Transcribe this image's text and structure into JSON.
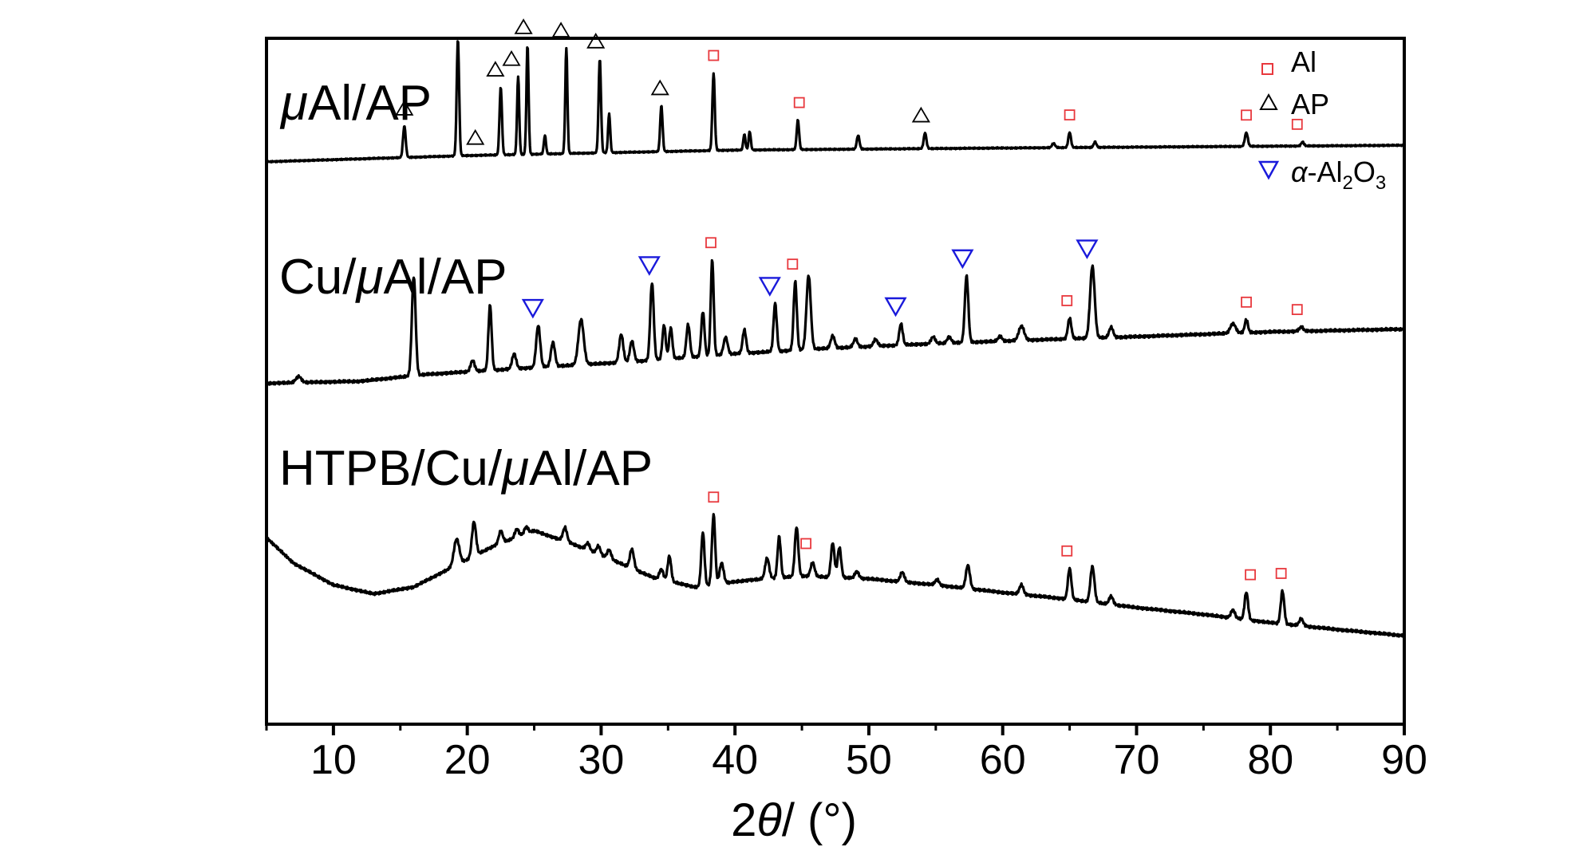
{
  "chart_data": {
    "type": "line",
    "title": "",
    "xlabel": "2θ/ (°)",
    "xlabel_parts": {
      "num": "2",
      "theta": "θ",
      "unit": "/ (°)"
    },
    "ylabel": "",
    "xlim": [
      5,
      90
    ],
    "x_ticks": [
      10,
      20,
      30,
      40,
      50,
      60,
      70,
      80,
      90
    ],
    "y_ticks_shown": false,
    "grid": false,
    "legend_position": "top-right",
    "legend": [
      {
        "symbol": "square",
        "label": "Al",
        "color": "#e8383d"
      },
      {
        "symbol": "triangle-up",
        "label": "AP",
        "color": "#000000"
      },
      {
        "symbol": "triangle-down",
        "label": "α-Al2O3",
        "label_parts": [
          "α",
          "-Al",
          "2",
          "O",
          "3"
        ],
        "color": "#1a1adb"
      }
    ],
    "series": [
      {
        "name": "μAl/AP",
        "label_parts": {
          "mu": "μ",
          "rest": "Al/AP"
        },
        "color": "#000000",
        "baseline": [
          [
            5,
            0.18
          ],
          [
            20,
            0.171
          ],
          [
            40,
            0.163
          ],
          [
            60,
            0.16
          ],
          [
            90,
            0.156
          ]
        ],
        "peaks": [
          [
            15.3,
            0.046,
            0.1
          ],
          [
            19.3,
            0.17,
            0.09
          ],
          [
            22.5,
            0.099,
            0.09
          ],
          [
            23.8,
            0.114,
            0.08
          ],
          [
            24.5,
            0.16,
            0.08
          ],
          [
            25.8,
            0.027,
            0.08
          ],
          [
            27.4,
            0.154,
            0.08
          ],
          [
            29.9,
            0.137,
            0.09
          ],
          [
            30.6,
            0.057,
            0.08
          ],
          [
            34.5,
            0.067,
            0.09
          ],
          [
            38.4,
            0.113,
            0.09
          ],
          [
            40.7,
            0.023,
            0.08
          ],
          [
            41.1,
            0.027,
            0.08
          ],
          [
            44.7,
            0.043,
            0.09
          ],
          [
            49.2,
            0.02,
            0.1
          ],
          [
            54.2,
            0.023,
            0.1
          ],
          [
            63.8,
            0.006,
            0.12
          ],
          [
            65.0,
            0.022,
            0.1
          ],
          [
            66.9,
            0.008,
            0.1
          ],
          [
            78.2,
            0.02,
            0.11
          ],
          [
            82.4,
            0.006,
            0.1
          ]
        ],
        "markers": [
          {
            "x": 15.3,
            "type": "AP"
          },
          {
            "x": 20.6,
            "type": "AP"
          },
          {
            "x": 22.1,
            "type": "AP"
          },
          {
            "x": 23.3,
            "type": "AP"
          },
          {
            "x": 24.2,
            "type": "AP"
          },
          {
            "x": 27.0,
            "type": "AP"
          },
          {
            "x": 29.6,
            "type": "AP"
          },
          {
            "x": 34.4,
            "type": "AP"
          },
          {
            "x": 38.4,
            "type": "Al"
          },
          {
            "x": 44.8,
            "type": "Al"
          },
          {
            "x": 53.9,
            "type": "AP"
          },
          {
            "x": 65.0,
            "type": "Al"
          },
          {
            "x": 78.2,
            "type": "Al"
          },
          {
            "x": 82.0,
            "type": "Al"
          }
        ]
      },
      {
        "name": "Cu/μAl/AP",
        "label_parts": {
          "pre": "Cu/",
          "mu": "μ",
          "rest": "Al/AP"
        },
        "color": "#000000",
        "baseline": [
          [
            5,
            0.503
          ],
          [
            12,
            0.5
          ],
          [
            17,
            0.49
          ],
          [
            25,
            0.48
          ],
          [
            32,
            0.472
          ],
          [
            40,
            0.46
          ],
          [
            47,
            0.452
          ],
          [
            55,
            0.445
          ],
          [
            62,
            0.44
          ],
          [
            70,
            0.435
          ],
          [
            80,
            0.428
          ],
          [
            90,
            0.424
          ]
        ],
        "peaks": [
          [
            7.4,
            0.009,
            0.2
          ],
          [
            16.0,
            0.145,
            0.14
          ],
          [
            20.4,
            0.016,
            0.15
          ],
          [
            21.7,
            0.095,
            0.12
          ],
          [
            23.5,
            0.022,
            0.15
          ],
          [
            25.3,
            0.061,
            0.15
          ],
          [
            26.4,
            0.035,
            0.15
          ],
          [
            28.5,
            0.066,
            0.2
          ],
          [
            31.5,
            0.041,
            0.15
          ],
          [
            32.3,
            0.03,
            0.15
          ],
          [
            33.8,
            0.113,
            0.13
          ],
          [
            34.7,
            0.05,
            0.12
          ],
          [
            35.2,
            0.045,
            0.12
          ],
          [
            36.5,
            0.048,
            0.13
          ],
          [
            37.6,
            0.065,
            0.12
          ],
          [
            38.3,
            0.139,
            0.11
          ],
          [
            39.3,
            0.025,
            0.15
          ],
          [
            40.7,
            0.034,
            0.13
          ],
          [
            43.0,
            0.07,
            0.12
          ],
          [
            44.5,
            0.1,
            0.12
          ],
          [
            45.5,
            0.108,
            0.16
          ],
          [
            47.3,
            0.018,
            0.15
          ],
          [
            49.0,
            0.012,
            0.15
          ],
          [
            50.5,
            0.01,
            0.15
          ],
          [
            52.4,
            0.031,
            0.13
          ],
          [
            54.8,
            0.01,
            0.15
          ],
          [
            56.0,
            0.009,
            0.15
          ],
          [
            57.3,
            0.097,
            0.13
          ],
          [
            59.8,
            0.007,
            0.15
          ],
          [
            61.4,
            0.021,
            0.2
          ],
          [
            65.0,
            0.03,
            0.13
          ],
          [
            66.7,
            0.105,
            0.17
          ],
          [
            68.1,
            0.015,
            0.15
          ],
          [
            77.2,
            0.014,
            0.2
          ],
          [
            78.2,
            0.019,
            0.12
          ],
          [
            82.3,
            0.006,
            0.15
          ]
        ],
        "markers": [
          {
            "x": 24.9,
            "type": "Al2O3"
          },
          {
            "x": 33.6,
            "type": "Al2O3"
          },
          {
            "x": 38.2,
            "type": "Al"
          },
          {
            "x": 42.6,
            "type": "Al2O3"
          },
          {
            "x": 44.3,
            "type": "Al"
          },
          {
            "x": 52.0,
            "type": "Al2O3"
          },
          {
            "x": 57.0,
            "type": "Al2O3"
          },
          {
            "x": 64.8,
            "type": "Al"
          },
          {
            "x": 66.3,
            "type": "Al2O3"
          },
          {
            "x": 78.2,
            "type": "Al"
          },
          {
            "x": 82.0,
            "type": "Al"
          }
        ]
      },
      {
        "name": "HTPB/Cu/μAl/AP",
        "label_parts": {
          "pre": "HTPB/Cu/",
          "mu": "μ",
          "rest": "Al/AP"
        },
        "color": "#000000",
        "baseline": [
          [
            5,
            0.728
          ],
          [
            7,
            0.765
          ],
          [
            10,
            0.797
          ],
          [
            13,
            0.81
          ],
          [
            16,
            0.8
          ],
          [
            19,
            0.77
          ],
          [
            22,
            0.74
          ],
          [
            25,
            0.718
          ],
          [
            28,
            0.738
          ],
          [
            31,
            0.762
          ],
          [
            34,
            0.787
          ],
          [
            37,
            0.8
          ],
          [
            41,
            0.79
          ],
          [
            45,
            0.784
          ],
          [
            50,
            0.788
          ],
          [
            55,
            0.797
          ],
          [
            60,
            0.808
          ],
          [
            65,
            0.818
          ],
          [
            70,
            0.83
          ],
          [
            75,
            0.84
          ],
          [
            80,
            0.852
          ],
          [
            85,
            0.862
          ],
          [
            90,
            0.871
          ]
        ],
        "peaks": [
          [
            19.2,
            0.038,
            0.2
          ],
          [
            20.5,
            0.05,
            0.15
          ],
          [
            22.5,
            0.018,
            0.15
          ],
          [
            23.7,
            0.012,
            0.15
          ],
          [
            24.4,
            0.01,
            0.15
          ],
          [
            27.3,
            0.02,
            0.15
          ],
          [
            29.0,
            0.01,
            0.15
          ],
          [
            29.8,
            0.012,
            0.15
          ],
          [
            30.6,
            0.013,
            0.15
          ],
          [
            32.3,
            0.028,
            0.15
          ],
          [
            34.5,
            0.015,
            0.15
          ],
          [
            35.1,
            0.037,
            0.13
          ],
          [
            37.6,
            0.078,
            0.12
          ],
          [
            38.4,
            0.102,
            0.12
          ],
          [
            39.0,
            0.03,
            0.15
          ],
          [
            42.4,
            0.03,
            0.15
          ],
          [
            43.3,
            0.06,
            0.12
          ],
          [
            44.6,
            0.072,
            0.13
          ],
          [
            45.8,
            0.02,
            0.15
          ],
          [
            47.3,
            0.05,
            0.13
          ],
          [
            47.8,
            0.044,
            0.13
          ],
          [
            49.1,
            0.01,
            0.15
          ],
          [
            52.5,
            0.014,
            0.15
          ],
          [
            55.1,
            0.008,
            0.15
          ],
          [
            57.4,
            0.034,
            0.15
          ],
          [
            61.4,
            0.014,
            0.15
          ],
          [
            65.0,
            0.045,
            0.13
          ],
          [
            66.7,
            0.052,
            0.15
          ],
          [
            68.1,
            0.012,
            0.15
          ],
          [
            77.2,
            0.012,
            0.15
          ],
          [
            78.2,
            0.04,
            0.13
          ],
          [
            80.9,
            0.048,
            0.13
          ],
          [
            82.3,
            0.01,
            0.15
          ]
        ],
        "markers": [
          {
            "x": 38.4,
            "type": "Al"
          },
          {
            "x": 45.3,
            "type": "Al"
          },
          {
            "x": 64.8,
            "type": "Al"
          },
          {
            "x": 78.5,
            "type": "Al"
          },
          {
            "x": 80.8,
            "type": "Al"
          }
        ]
      }
    ]
  }
}
